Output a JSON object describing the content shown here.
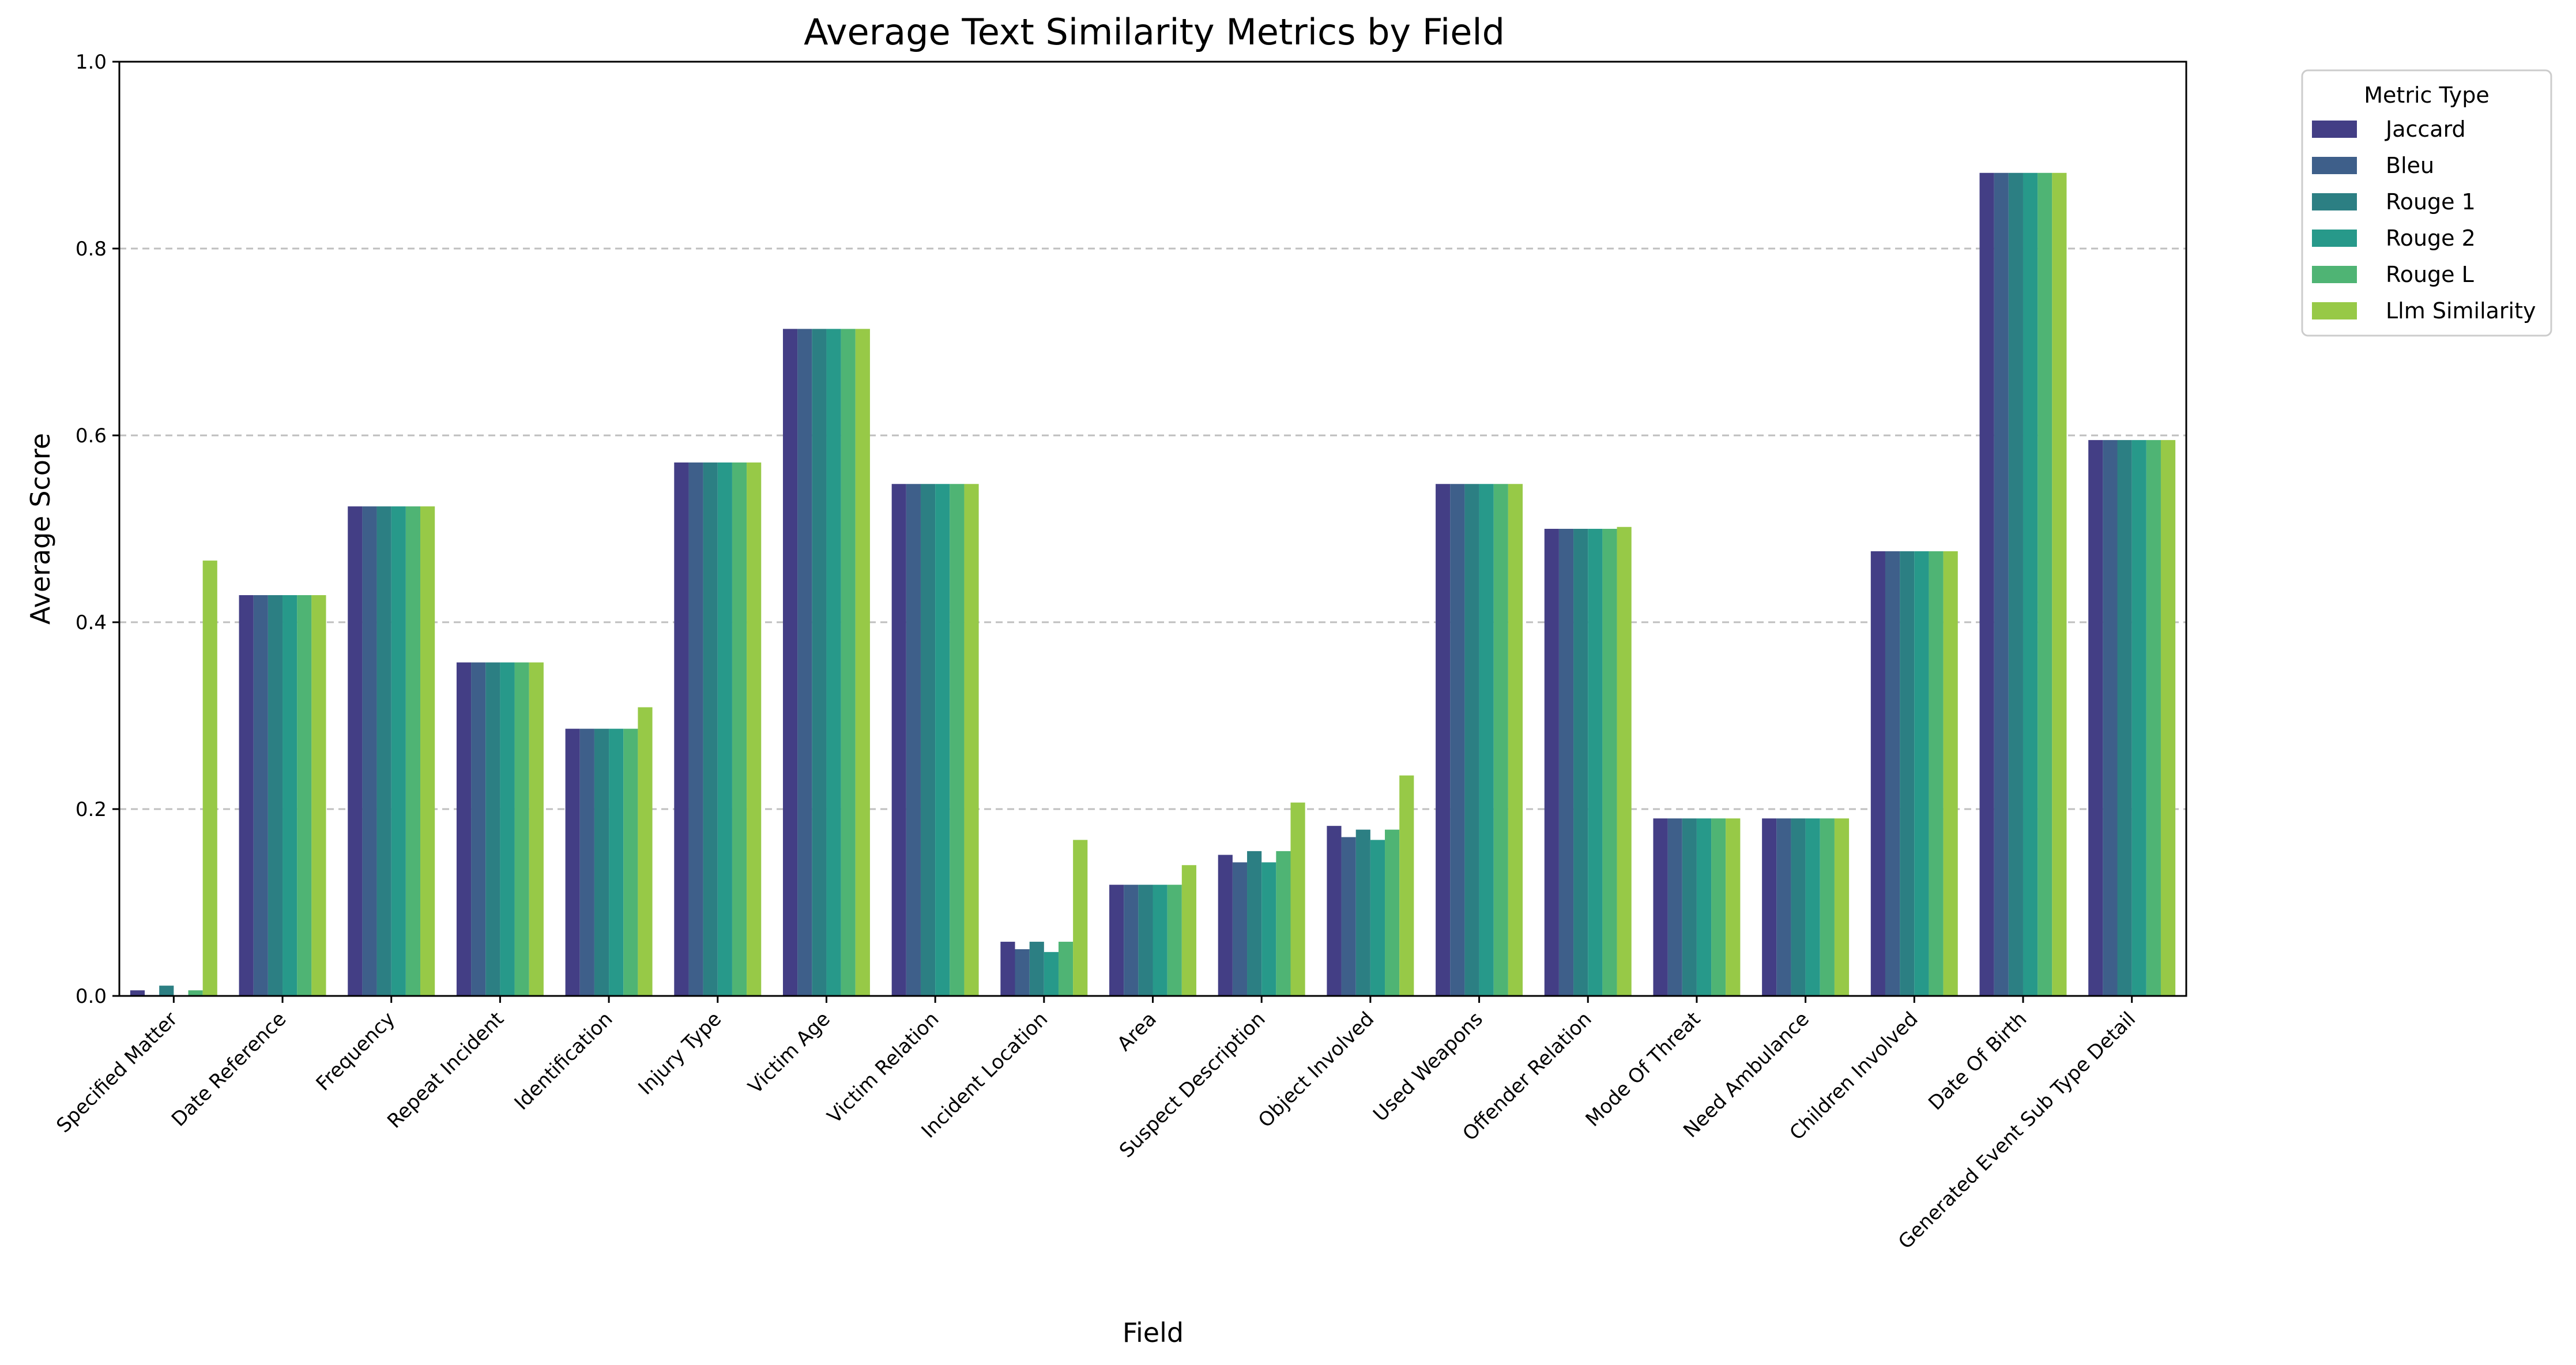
{
  "chart_data": {
    "type": "bar",
    "title": "Average Text Similarity Metrics by Field",
    "xlabel": "Field",
    "ylabel": "Average Score",
    "ylim": [
      0,
      1.0
    ],
    "yticks": [
      "0.0",
      "0.2",
      "0.4",
      "0.6",
      "0.8",
      "1.0"
    ],
    "grid": "horizontal dashed",
    "legend": {
      "title": "Metric Type",
      "placement": "outside upper-right"
    },
    "categories": [
      "Specified Matter",
      "Date Reference",
      "Frequency",
      "Repeat Incident",
      "Identification",
      "Injury Type",
      "Victim Age",
      "Victim Relation",
      "Incident Location",
      "Area",
      "Suspect Description",
      "Object Involved",
      "Used Weapons",
      "Offender Relation",
      "Mode Of Threat",
      "Need Ambulance",
      "Children Involved",
      "Date Of Birth",
      "Generated Event Sub Type Detail"
    ],
    "series": [
      {
        "name": "Jaccard",
        "color": "#433e85",
        "values": [
          0.006,
          0.429,
          0.524,
          0.357,
          0.286,
          0.571,
          0.714,
          0.548,
          0.058,
          0.119,
          0.151,
          0.182,
          0.548,
          0.5,
          0.19,
          0.19,
          0.476,
          0.881,
          0.595
        ]
      },
      {
        "name": "Bleu",
        "color": "#3e5f8a",
        "values": [
          0.001,
          0.429,
          0.524,
          0.357,
          0.286,
          0.571,
          0.714,
          0.548,
          0.05,
          0.119,
          0.143,
          0.17,
          0.548,
          0.5,
          0.19,
          0.19,
          0.476,
          0.881,
          0.595
        ]
      },
      {
        "name": "Rouge 1",
        "color": "#2c7f83",
        "values": [
          0.011,
          0.429,
          0.524,
          0.357,
          0.286,
          0.571,
          0.714,
          0.548,
          0.058,
          0.119,
          0.155,
          0.178,
          0.548,
          0.5,
          0.19,
          0.19,
          0.476,
          0.881,
          0.595
        ]
      },
      {
        "name": "Rouge 2",
        "color": "#27998a",
        "values": [
          0.0,
          0.429,
          0.524,
          0.357,
          0.286,
          0.571,
          0.714,
          0.548,
          0.047,
          0.119,
          0.143,
          0.167,
          0.548,
          0.5,
          0.19,
          0.19,
          0.476,
          0.881,
          0.595
        ]
      },
      {
        "name": "Rouge L",
        "color": "#4fb474",
        "values": [
          0.006,
          0.429,
          0.524,
          0.357,
          0.286,
          0.571,
          0.714,
          0.548,
          0.058,
          0.119,
          0.155,
          0.178,
          0.548,
          0.5,
          0.19,
          0.19,
          0.476,
          0.881,
          0.595
        ]
      },
      {
        "name": "Llm Similarity",
        "color": "#97c947",
        "values": [
          0.466,
          0.429,
          0.524,
          0.357,
          0.309,
          0.571,
          0.714,
          0.548,
          0.167,
          0.14,
          0.207,
          0.236,
          0.548,
          0.502,
          0.19,
          0.19,
          0.476,
          0.881,
          0.595
        ]
      }
    ]
  }
}
